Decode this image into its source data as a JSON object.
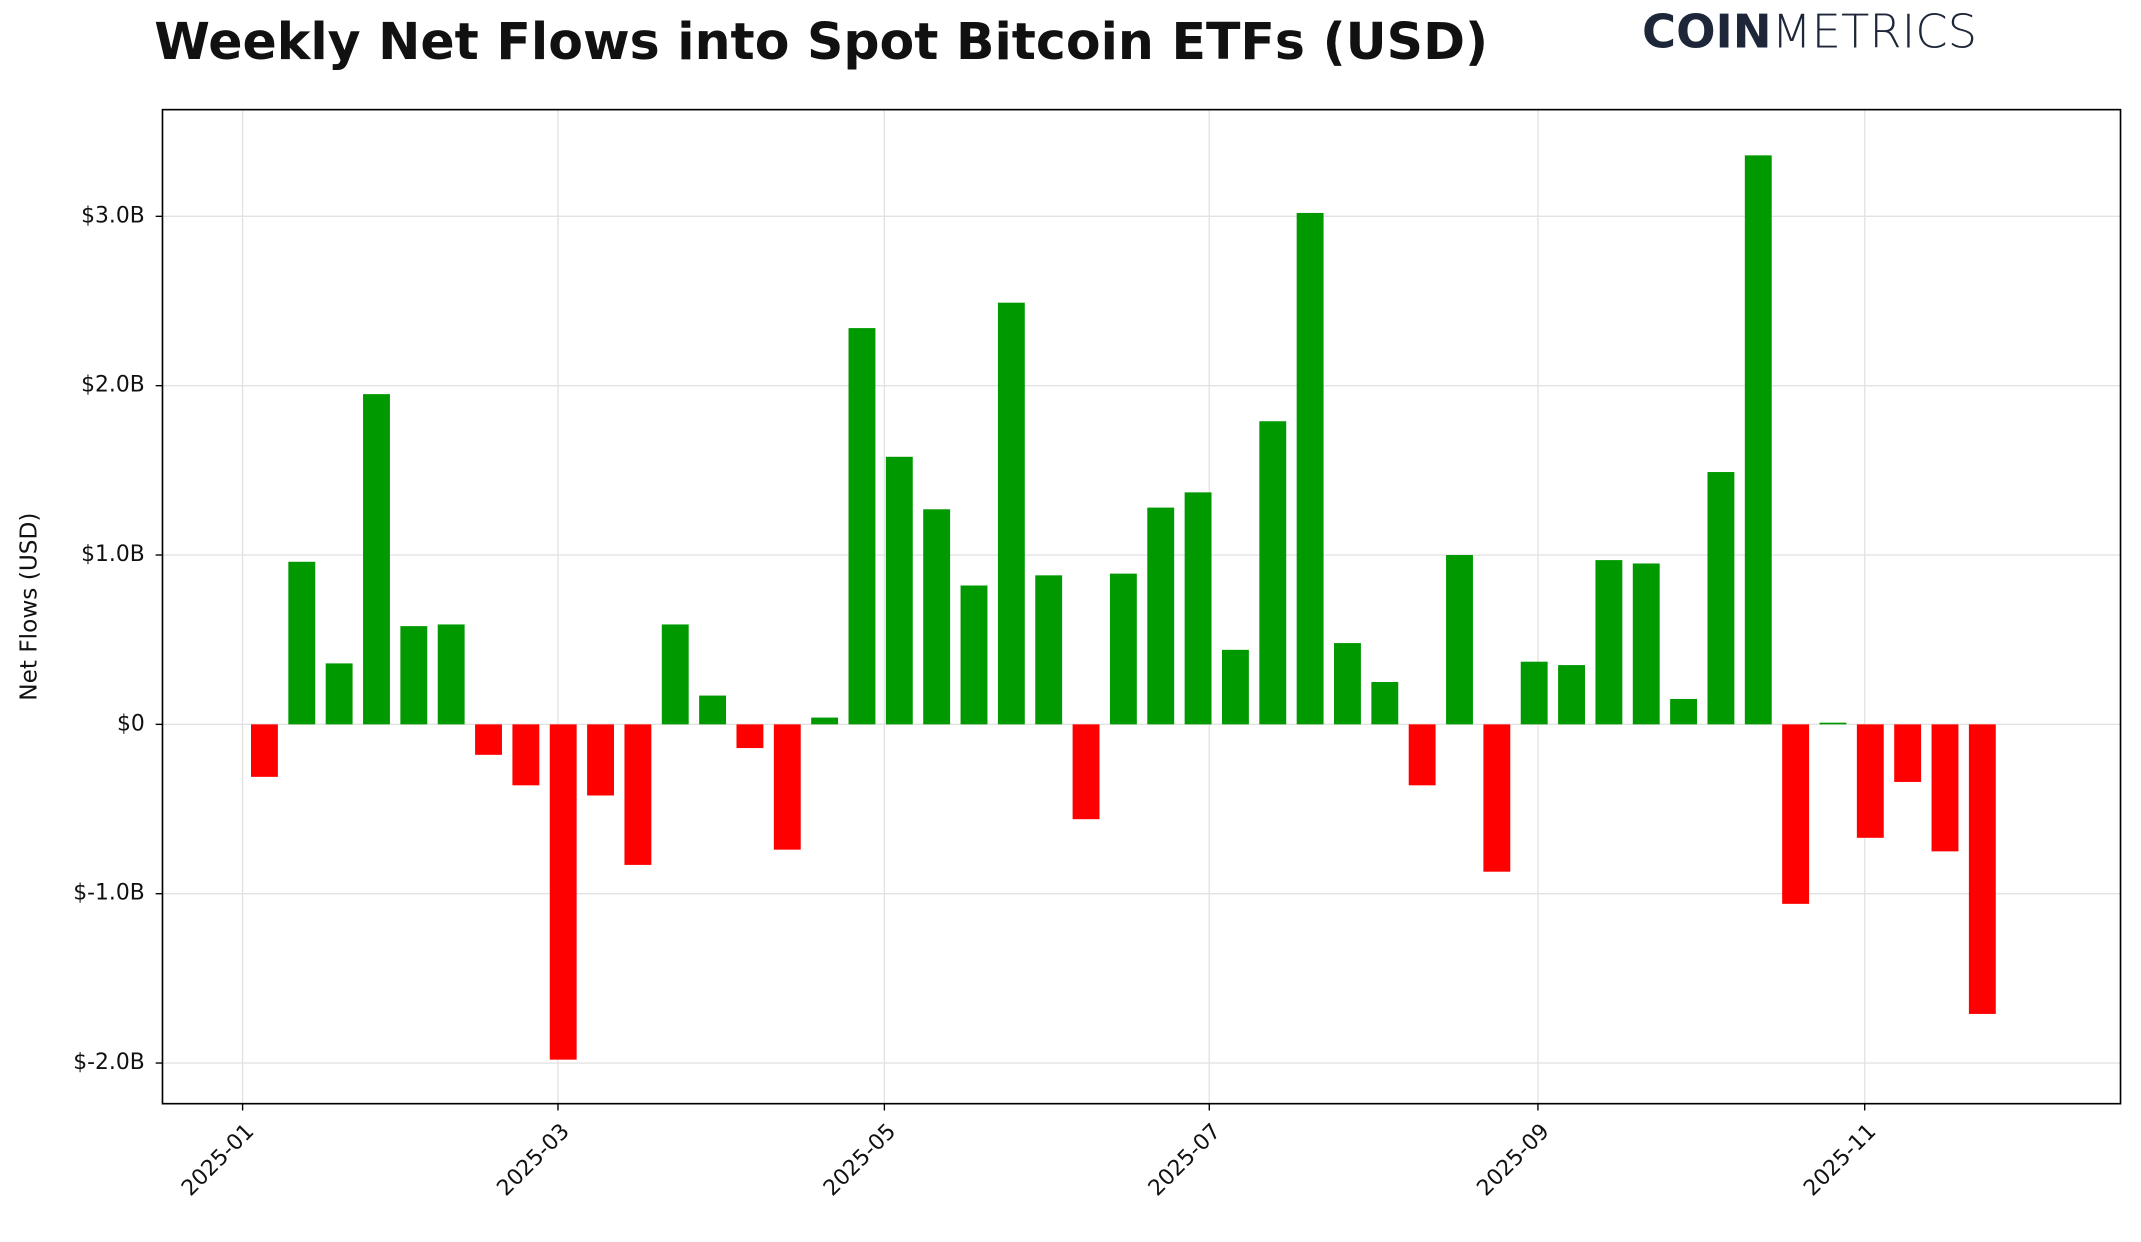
{
  "chart_data": {
    "type": "bar",
    "title": "Weekly Net Flows into Spot Bitcoin ETFs (USD)",
    "y_label": "Net Flows (USD)",
    "logo": {
      "bold": "COIN",
      "light": "METRICS"
    },
    "categories": [
      null,
      null,
      null,
      null,
      null,
      null,
      null,
      null,
      null,
      null,
      null,
      null,
      null,
      null,
      null,
      null,
      null,
      null,
      null,
      null,
      null,
      null,
      null,
      null,
      null,
      null,
      null,
      null,
      null,
      null,
      null,
      null,
      null,
      null,
      null,
      null,
      null,
      null,
      null,
      null,
      null,
      null,
      null,
      null,
      null,
      null,
      null
    ],
    "values": [
      -310000000,
      960000000,
      360000000,
      1950000000,
      580000000,
      590000000,
      -180000000,
      -360000000,
      -1980000000,
      -420000000,
      -830000000,
      590000000,
      170000000,
      -140000000,
      -740000000,
      40000000,
      2340000000,
      1580000000,
      1270000000,
      820000000,
      2490000000,
      880000000,
      -560000000,
      890000000,
      1280000000,
      1370000000,
      440000000,
      1790000000,
      3020000000,
      480000000,
      250000000,
      -360000000,
      1000000000,
      -870000000,
      370000000,
      350000000,
      970000000,
      950000000,
      150000000,
      1490000000,
      3360000000,
      -1060000000,
      10000000,
      -670000000,
      -340000000,
      -750000000,
      -1710000000
    ],
    "positive_color": "#009900",
    "negative_color": "#ff0000",
    "xlim": [
      -2.73,
      49.7
    ],
    "xticks": [
      {
        "value": -0.585,
        "label": "2025-01"
      },
      {
        "value": 7.86,
        "label": "2025-03"
      },
      {
        "value": 16.6,
        "label": "2025-05"
      },
      {
        "value": 25.3,
        "label": "2025-07"
      },
      {
        "value": 34.1,
        "label": "2025-09"
      },
      {
        "value": 42.85,
        "label": "2025-11"
      }
    ],
    "ylim": [
      -2240000000,
      3630000000
    ],
    "yticks": [
      {
        "value": -2000000000,
        "label": "$-2.0B"
      },
      {
        "value": -1000000000,
        "label": "$-1.0B"
      },
      {
        "value": 0,
        "label": "$0"
      },
      {
        "value": 1000000000,
        "label": "$1.0B"
      },
      {
        "value": 2000000000,
        "label": "$2.0B"
      },
      {
        "value": 3000000000,
        "label": "$3.0B"
      }
    ],
    "grid": true
  }
}
